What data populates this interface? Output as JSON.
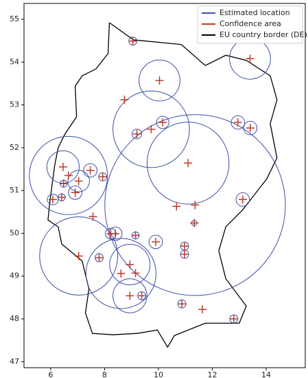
{
  "chart_data": {
    "type": "scatter",
    "xlim": [
      5.01,
      15.45
    ],
    "ylim": [
      46.86,
      55.37
    ],
    "xticks": [
      6,
      8,
      10,
      12,
      14
    ],
    "yticks": [
      47,
      48,
      49,
      50,
      51,
      52,
      53,
      54,
      55
    ],
    "legend": "upper right",
    "series": [
      {
        "name": "Estimated location",
        "color": "#3a4fa8",
        "x": [
          9.05,
          13.4,
          10.04,
          8.74,
          9.73,
          10.16,
          9.2,
          11.1,
          10.67,
          11.36,
          11.33,
          12.95,
          13.41,
          13.13,
          6.46,
          6.66,
          7.04,
          6.91,
          7.47,
          7.93,
          6.08,
          6.41,
          6.48,
          7.57,
          7.04,
          7.8,
          8.23,
          8.4,
          9.15,
          9.9,
          10.97,
          10.97,
          8.94,
          8.61,
          9.15,
          8.94,
          9.38,
          10.87,
          11.63,
          12.8
        ],
        "values": [
          54.49,
          54.08,
          53.57,
          53.12,
          52.43,
          52.59,
          52.32,
          51.64,
          50.63,
          50.66,
          50.24,
          52.59,
          52.46,
          50.79,
          51.55,
          51.35,
          51.22,
          50.95,
          51.47,
          51.32,
          50.79,
          50.84,
          51.16,
          50.39,
          49.47,
          49.43,
          49.99,
          49.99,
          49.95,
          49.8,
          49.7,
          49.51,
          49.27,
          49.06,
          49.07,
          48.54,
          48.54,
          48.35,
          48.22,
          48.0
        ]
      },
      {
        "name": "Confidence area",
        "color": "#c0392b",
        "radius": [
          0.15,
          0.76,
          0.76,
          null,
          1.42,
          0.23,
          0.18,
          1.52,
          null,
          3.35,
          0.1,
          0.25,
          0.25,
          0.25,
          0.6,
          1.45,
          0.4,
          0.25,
          0.25,
          0.15,
          0.2,
          0.13,
          0.13,
          null,
          1.45,
          0.15,
          0.2,
          0.25,
          0.13,
          0.25,
          0.15,
          0.15,
          0.75,
          1.3,
          null,
          0.63,
          0.15,
          0.15,
          null,
          0.15
        ]
      },
      {
        "name": "EU country border (DE)",
        "color": "#000000",
        "x": [
          8.18,
          8.13,
          7.68,
          7.17,
          6.91,
          6.96,
          6.53,
          6.28,
          6.15,
          6.03,
          5.95,
          5.9,
          6.28,
          6.41,
          7.17,
          7.42,
          7.29,
          7.55,
          8.31,
          9.2,
          9.96,
          10.34,
          10.59,
          11.74,
          13.0,
          13.26,
          12.5,
          12.24,
          12.5,
          13.13,
          14.02,
          14.4,
          14.15,
          14.4,
          14.15,
          13.26,
          12.5,
          11.74,
          10.85,
          9.07,
          8.18
        ],
        "values": [
          54.92,
          54.2,
          53.84,
          53.68,
          53.44,
          52.72,
          52.32,
          52.0,
          51.59,
          51.03,
          50.63,
          50.31,
          50.15,
          49.75,
          49.35,
          48.7,
          48.14,
          47.66,
          47.63,
          47.66,
          47.74,
          47.34,
          47.61,
          47.9,
          47.9,
          48.3,
          48.94,
          49.59,
          50.15,
          50.55,
          51.27,
          51.76,
          52.56,
          53.12,
          53.68,
          54.04,
          54.16,
          53.92,
          54.41,
          54.52,
          54.92
        ]
      }
    ]
  }
}
